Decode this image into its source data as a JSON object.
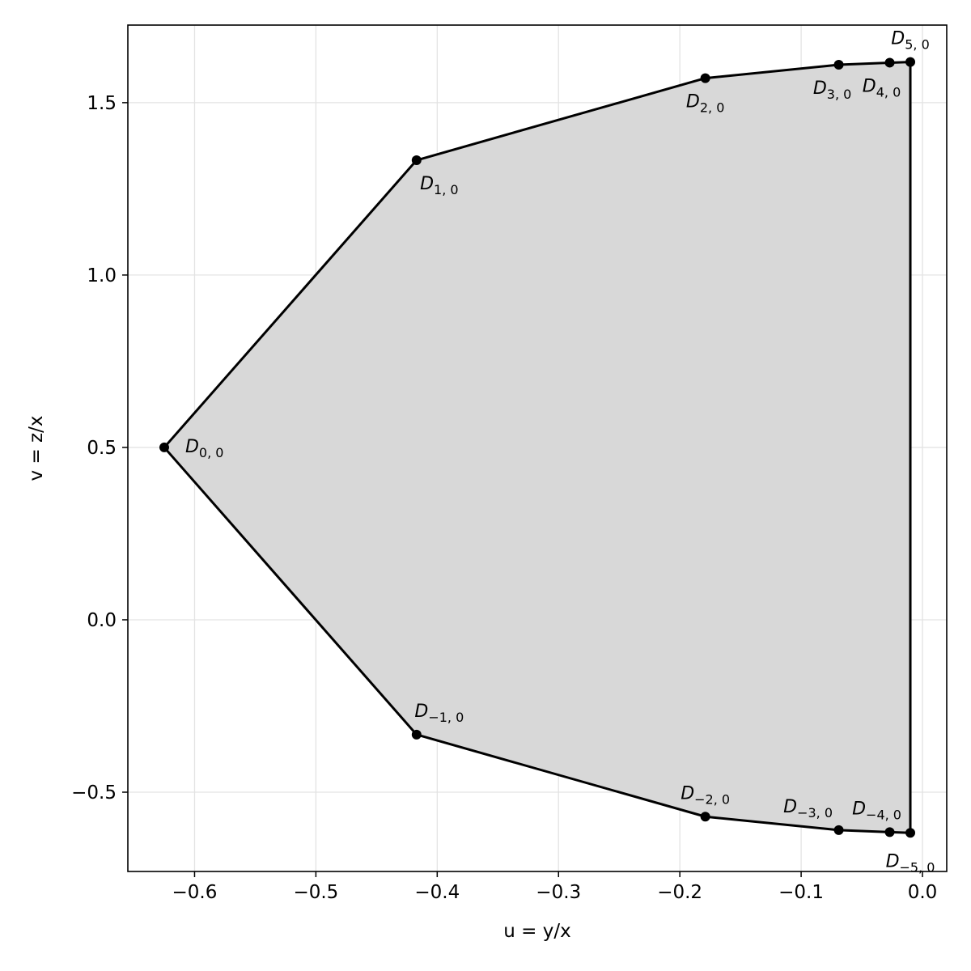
{
  "chart_data": {
    "type": "scatter",
    "xlabel": "u = y/x",
    "ylabel": "v = z/x",
    "xlim": [
      -0.655,
      0.02
    ],
    "ylim": [
      -0.73,
      1.725
    ],
    "x_ticks": [
      -0.6,
      -0.5,
      -0.4,
      -0.3,
      -0.2,
      -0.1,
      0.0
    ],
    "x_tick_labels": [
      "−0.6",
      "−0.5",
      "−0.4",
      "−0.3",
      "−0.2",
      "−0.1",
      "0.0"
    ],
    "y_ticks": [
      -0.5,
      0.0,
      0.5,
      1.0,
      1.5
    ],
    "y_tick_labels": [
      "−0.5",
      "0.0",
      "0.5",
      "1.0",
      "1.5"
    ],
    "grid": true,
    "fill_color": "#d8d8d8",
    "line_color": "#000000",
    "points": [
      {
        "sub": "0, 0",
        "x": -0.625,
        "y": 0.5,
        "label_pos": "right"
      },
      {
        "sub": "1, 0",
        "x": -0.417,
        "y": 1.333,
        "label_pos": "below"
      },
      {
        "sub": "2, 0",
        "x": -0.179,
        "y": 1.571,
        "label_pos": "below"
      },
      {
        "sub": "3, 0",
        "x": -0.069,
        "y": 1.61,
        "label_pos": "below"
      },
      {
        "sub": "4, 0",
        "x": -0.027,
        "y": 1.616,
        "label_pos": "below"
      },
      {
        "sub": "5, 0",
        "x": -0.01,
        "y": 1.618,
        "label_pos": "above"
      },
      {
        "sub": "−1, 0",
        "x": -0.417,
        "y": -0.333,
        "label_pos": "above"
      },
      {
        "sub": "−2, 0",
        "x": -0.179,
        "y": -0.571,
        "label_pos": "above"
      },
      {
        "sub": "−3, 0",
        "x": -0.069,
        "y": -0.61,
        "label_pos": "above"
      },
      {
        "sub": "−4, 0",
        "x": -0.027,
        "y": -0.616,
        "label_pos": "above"
      },
      {
        "sub": "−5, 0",
        "x": -0.01,
        "y": -0.618,
        "label_pos": "below"
      }
    ],
    "polygon_order": [
      "−5, 0",
      "−4, 0",
      "−3, 0",
      "−2, 0",
      "−1, 0",
      "0, 0",
      "1, 0",
      "2, 0",
      "3, 0",
      "4, 0",
      "5, 0"
    ]
  }
}
